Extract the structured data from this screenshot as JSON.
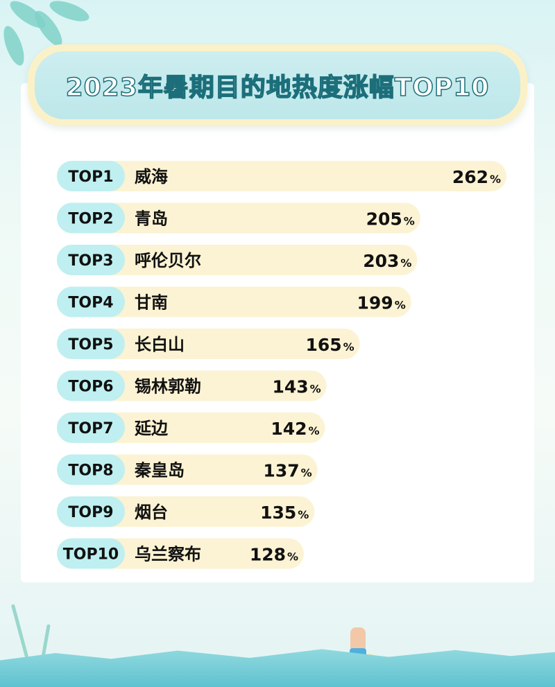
{
  "title": "2023年暑期目的地热度涨幅TOP10",
  "colors": {
    "rank_pill": "#bfeff0",
    "bar": "#fbf3d3",
    "title_stroke": "#1c6f7a",
    "text": "#111111"
  },
  "chart_data": {
    "type": "bar",
    "orientation": "horizontal",
    "title": "2023年暑期目的地热度涨幅TOP10",
    "ranks": [
      "TOP1",
      "TOP2",
      "TOP3",
      "TOP4",
      "TOP5",
      "TOP6",
      "TOP7",
      "TOP8",
      "TOP9",
      "TOP10"
    ],
    "categories": [
      "威海",
      "青岛",
      "呼伦贝尔",
      "甘南",
      "长白山",
      "锡林郭勒",
      "延边",
      "秦皇岛",
      "烟台",
      "乌兰察布"
    ],
    "values": [
      262,
      205,
      203,
      199,
      165,
      143,
      142,
      137,
      135,
      128
    ],
    "unit": "%",
    "xlabel": "",
    "ylabel": ""
  }
}
